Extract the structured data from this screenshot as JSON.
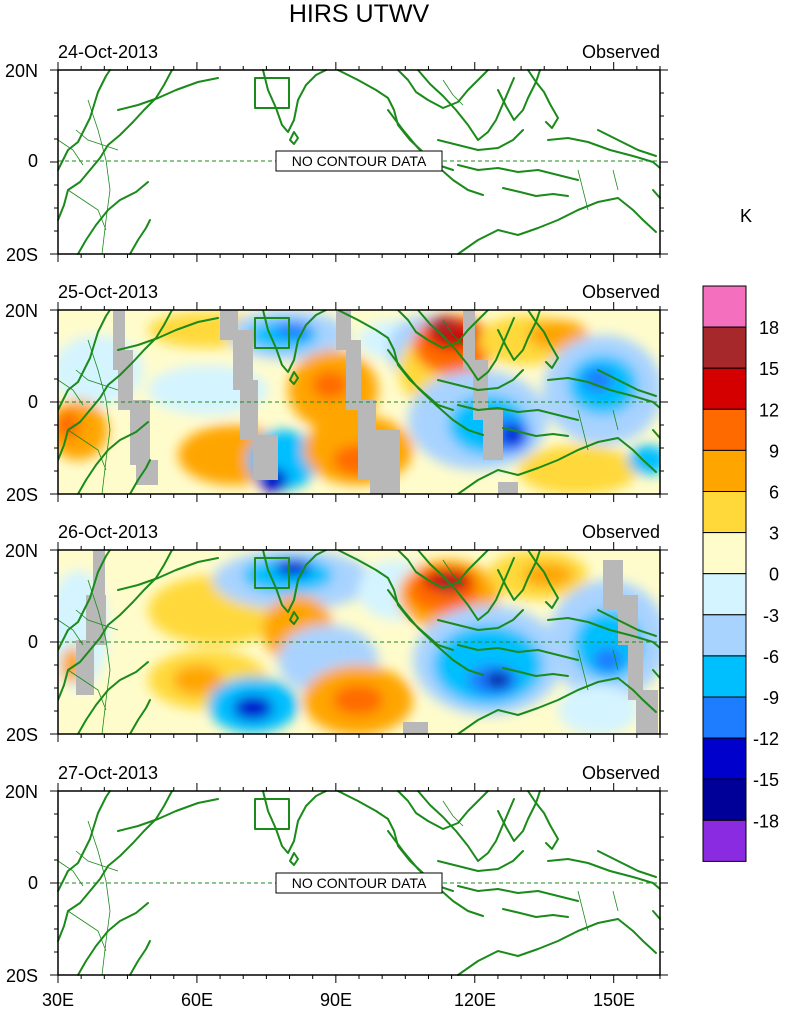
{
  "title": "HIRS UTWV",
  "unit": "K",
  "lat_labels": [
    "20N",
    "0",
    "20S"
  ],
  "lon_labels": [
    "30E",
    "60E",
    "90E",
    "120E",
    "150E"
  ],
  "panels": [
    {
      "date": "24-Oct-2013",
      "tag": "Observed",
      "has_data": false,
      "message": "NO CONTOUR DATA"
    },
    {
      "date": "25-Oct-2013",
      "tag": "Observed",
      "has_data": true
    },
    {
      "date": "26-Oct-2013",
      "tag": "Observed",
      "has_data": true
    },
    {
      "date": "27-Oct-2013",
      "tag": "Observed",
      "has_data": false,
      "message": "NO CONTOUR DATA"
    }
  ],
  "colorbar": {
    "labels": [
      "18",
      "15",
      "12",
      "9",
      "6",
      "3",
      "0",
      "-3",
      "-6",
      "-9",
      "-12",
      "-15",
      "-18"
    ],
    "colors": [
      "#f56fbf",
      "#a6282a",
      "#d40000",
      "#ff6a00",
      "#ffa500",
      "#ffd93a",
      "#fffccc",
      "#d4f4ff",
      "#a9d3ff",
      "#00bfff",
      "#1e7cff",
      "#0000cc",
      "#000099",
      "#8a2be2"
    ]
  },
  "colors": {
    "coast": "#1a8a1a",
    "missing": "#b8b8b8"
  }
}
